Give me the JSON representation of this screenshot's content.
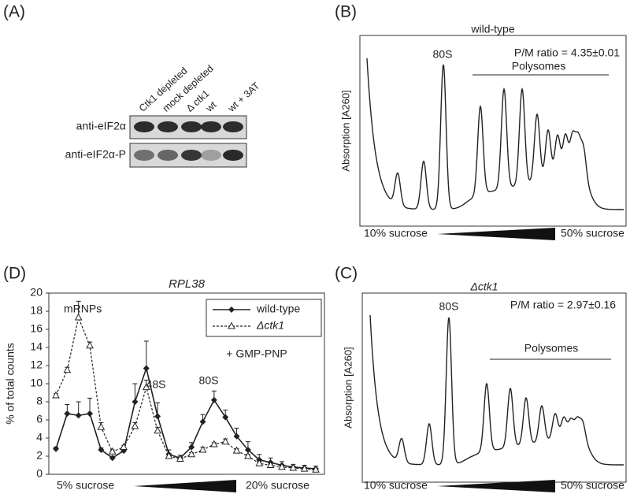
{
  "panel_a": {
    "label": "(A)",
    "lanes": [
      "Ctk1 depleted",
      "mock depleted",
      "Δ ctk1",
      "wt",
      "wt + 3AT"
    ],
    "rows": [
      "anti-eIF2α",
      "anti-eIF2α-P"
    ]
  },
  "panel_b": {
    "label": "(B)",
    "title": "wild-type",
    "peak_label": "80S",
    "ratio": "P/M ratio = 4.35±0.01",
    "polysomes": "Polysomes",
    "ylabel": "Absorption [A260]",
    "gradient_start": "10% sucrose",
    "gradient_end": "50% sucrose"
  },
  "panel_c": {
    "label": "(C)",
    "title": "Δctk1",
    "peak_label": "80S",
    "ratio": "P/M ratio = 2.97±0.16",
    "polysomes": "Polysomes",
    "ylabel": "Absorption [A260]",
    "gradient_start": "10% sucrose",
    "gradient_end": "50% sucrose"
  },
  "chart_data": {
    "type": "line",
    "panel_label": "(D)",
    "title": "RPL38",
    "ylabel": "% of total counts",
    "categories": [
      null,
      null,
      null,
      null,
      null,
      null,
      null,
      null,
      null,
      null,
      null,
      null,
      null,
      null,
      null,
      null,
      null,
      null,
      null,
      null,
      null,
      null,
      null,
      null
    ],
    "series": [
      {
        "name": "wild-type",
        "color": "#222222",
        "marker": "diamond",
        "dashed": false,
        "values": [
          2.8,
          6.7,
          6.5,
          6.7,
          2.7,
          1.8,
          2.6,
          8.0,
          11.7,
          6.4,
          2.2,
          1.8,
          3.0,
          5.8,
          8.2,
          6.3,
          4.2,
          2.7,
          1.6,
          1.3,
          1.0,
          0.8,
          0.7,
          0.6
        ],
        "errors": [
          0.2,
          1.0,
          1.5,
          1.7,
          0.2,
          0.2,
          0.3,
          2.0,
          3.0,
          1.5,
          0.5,
          0.3,
          0.5,
          0.8,
          1.0,
          0.8,
          0.9,
          0.9,
          0.6,
          0.5,
          0.4,
          0.3,
          0.3,
          0.3
        ]
      },
      {
        "name": "Δctk1",
        "color": "#222222",
        "marker": "triangle",
        "dashed": true,
        "values": [
          8.7,
          11.5,
          17.3,
          14.2,
          5.2,
          2.5,
          3.0,
          5.3,
          9.6,
          4.8,
          2.0,
          1.7,
          2.2,
          2.7,
          3.3,
          3.6,
          2.6,
          2.0,
          1.2,
          1.0,
          0.8,
          0.7,
          0.6,
          0.5
        ],
        "errors": [
          0.2,
          0.3,
          1.8,
          0.4,
          0.5,
          0.2,
          0.2,
          0.4,
          0.8,
          0.4,
          0.3,
          0.2,
          0.2,
          0.3,
          0.2,
          0.3,
          0.2,
          0.2,
          0.2,
          0.1,
          0.1,
          0.1,
          0.1,
          0.1
        ]
      }
    ],
    "ylim": [
      0,
      20
    ],
    "yticks": [
      0,
      2,
      4,
      6,
      8,
      10,
      12,
      14,
      16,
      18,
      20
    ],
    "annotations": [
      "mRNPs",
      "48S",
      "80S",
      "+ GMP-PNP"
    ],
    "gradient_start": "5% sucrose",
    "gradient_end": "20% sucrose",
    "legend": "top-right"
  }
}
